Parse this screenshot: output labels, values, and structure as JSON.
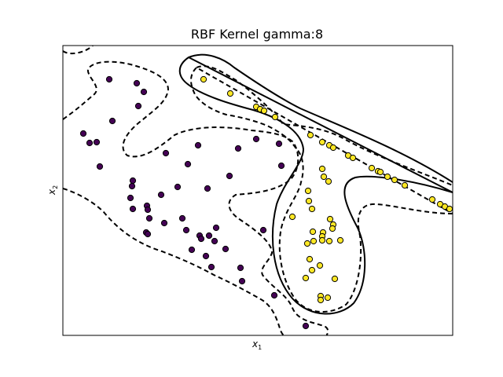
{
  "chart_data": {
    "type": "scatter",
    "title": "RBF Kernel gamma:8",
    "xlabel": "x",
    "xlabel_sub": "1",
    "ylabel": "x",
    "ylabel_sub": "2",
    "xticks": [],
    "yticks": [],
    "grid": false,
    "colors": {
      "class_0": "#440154",
      "class_1": "#fde725",
      "decision_line": "#000000"
    },
    "series": [
      {
        "class": 0,
        "points": [
          [
            139,
            101
          ],
          [
            174,
            106
          ],
          [
            183,
            117
          ],
          [
            176,
            135
          ],
          [
            143,
            154
          ],
          [
            106,
            170
          ],
          [
            114,
            182
          ],
          [
            123,
            181
          ],
          [
            127,
            212
          ],
          [
            211,
            195
          ],
          [
            252,
            185
          ],
          [
            303,
            189
          ],
          [
            326,
            177
          ],
          [
            355,
            183
          ],
          [
            358,
            211
          ],
          [
            239,
            209
          ],
          [
            292,
            224
          ],
          [
            169,
            230
          ],
          [
            168,
            237
          ],
          [
            166,
            252
          ],
          [
            205,
            248
          ],
          [
            226,
            238
          ],
          [
            264,
            240
          ],
          [
            187,
            262
          ],
          [
            188,
            267
          ],
          [
            169,
            266
          ],
          [
            190,
            278
          ],
          [
            209,
            284
          ],
          [
            232,
            278
          ],
          [
            237,
            293
          ],
          [
            186,
            296
          ],
          [
            188,
            298
          ],
          [
            254,
            300
          ],
          [
            256,
            304
          ],
          [
            266,
            300
          ],
          [
            275,
            290
          ],
          [
            273,
            307
          ],
          [
            287,
            317
          ],
          [
            244,
            318
          ],
          [
            262,
            326
          ],
          [
            269,
            340
          ],
          [
            335,
            293
          ],
          [
            306,
            341
          ],
          [
            308,
            358
          ],
          [
            349,
            376
          ],
          [
            389,
            415
          ]
        ]
      },
      {
        "class": 1,
        "points": [
          [
            259,
            101
          ],
          [
            293,
            119
          ],
          [
            326,
            136
          ],
          [
            331,
            139
          ],
          [
            336,
            141
          ],
          [
            350,
            149
          ],
          [
            395,
            172
          ],
          [
            410,
            181
          ],
          [
            419,
            185
          ],
          [
            424,
            188
          ],
          [
            443,
            198
          ],
          [
            449,
            201
          ],
          [
            473,
            214
          ],
          [
            481,
            218
          ],
          [
            484,
            219
          ],
          [
            493,
            225
          ],
          [
            502,
            229
          ],
          [
            515,
            236
          ],
          [
            550,
            254
          ],
          [
            560,
            260
          ],
          [
            566,
            263
          ],
          [
            572,
            266
          ],
          [
            410,
            215
          ],
          [
            412,
            225
          ],
          [
            418,
            231
          ],
          [
            392,
            243
          ],
          [
            393,
            256
          ],
          [
            397,
            266
          ],
          [
            372,
            276
          ],
          [
            420,
            279
          ],
          [
            424,
            286
          ],
          [
            423,
            291
          ],
          [
            398,
            295
          ],
          [
            411,
            296
          ],
          [
            410,
            301
          ],
          [
            399,
            307
          ],
          [
            391,
            310
          ],
          [
            410,
            306
          ],
          [
            419,
            307
          ],
          [
            433,
            306
          ],
          [
            394,
            330
          ],
          [
            407,
            338
          ],
          [
            397,
            344
          ],
          [
            426,
            355
          ],
          [
            389,
            354
          ],
          [
            408,
            377
          ],
          [
            417,
            379
          ],
          [
            408,
            382
          ]
        ]
      }
    ]
  }
}
